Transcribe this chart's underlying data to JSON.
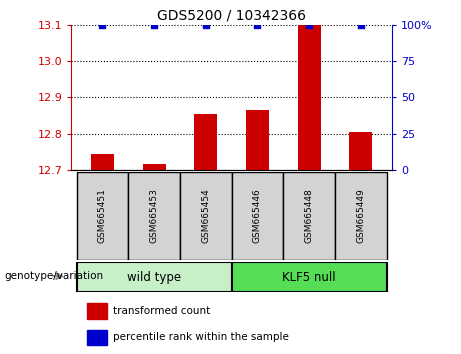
{
  "title": "GDS5200 / 10342366",
  "samples": [
    "GSM665451",
    "GSM665453",
    "GSM665454",
    "GSM665446",
    "GSM665448",
    "GSM665449"
  ],
  "wild_type_color": "#c8f0c8",
  "klf5_null_color": "#55dd55",
  "bar_color": "#cc0000",
  "dot_color": "#0000cc",
  "transformed_counts": [
    12.745,
    12.715,
    12.855,
    12.865,
    13.1,
    12.805
  ],
  "percentile_ranks": [
    100,
    100,
    100,
    100,
    100,
    100
  ],
  "ylim_left": [
    12.7,
    13.1
  ],
  "ylim_right": [
    0,
    100
  ],
  "yticks_left": [
    12.7,
    12.8,
    12.9,
    13.0,
    13.1
  ],
  "yticks_right": [
    0,
    25,
    50,
    75,
    100
  ],
  "bar_width": 0.45,
  "legend_items": [
    "transformed count",
    "percentile rank within the sample"
  ],
  "legend_colors": [
    "#cc0000",
    "#0000cc"
  ],
  "genotype_label": "genotype/variation",
  "gray_cell_color": "#d3d3d3",
  "ylabel_left_color": "#cc0000",
  "ylabel_right_color": "#0000cc"
}
